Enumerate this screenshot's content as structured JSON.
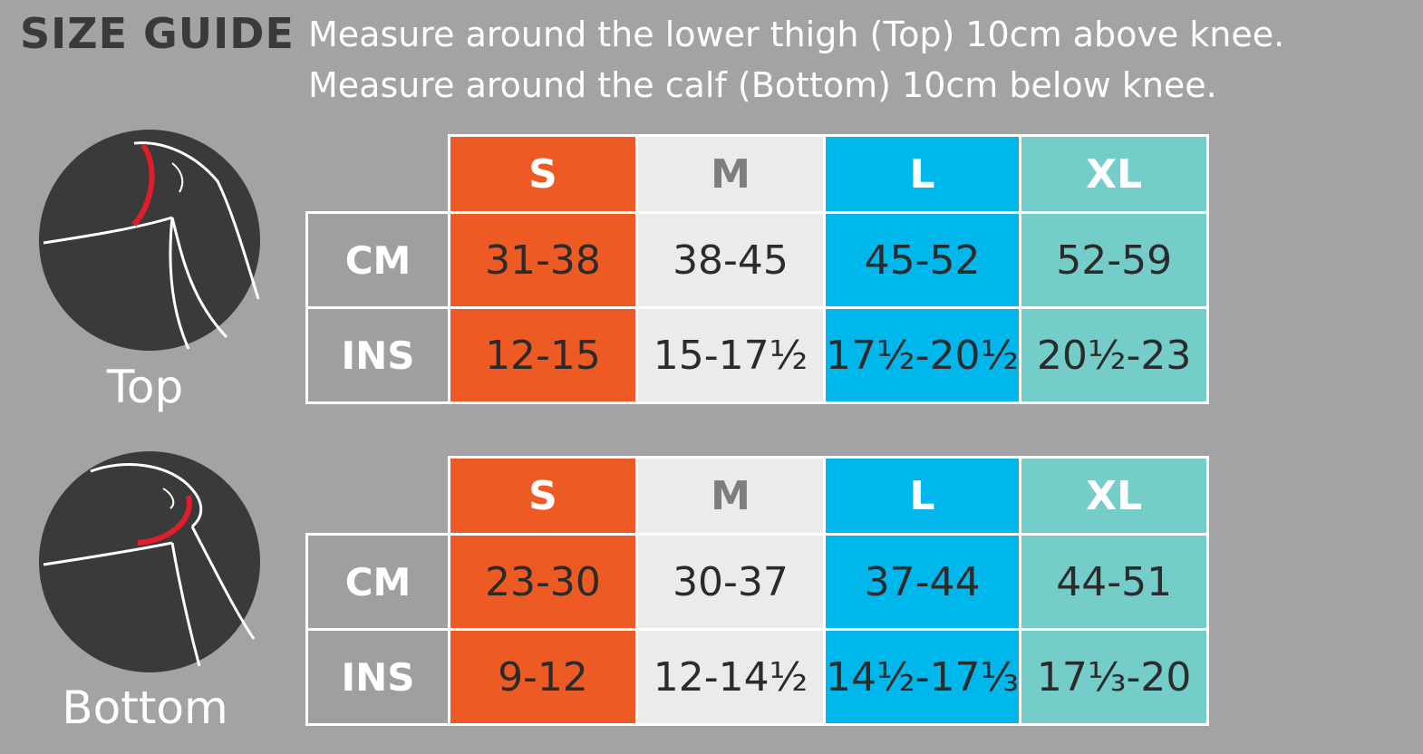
{
  "title": "SIZE GUIDE",
  "instructions": [
    "Measure around the lower thigh (Top) 10cm above knee.",
    "Measure around the calf (Bottom) 10cm below knee."
  ],
  "colors": {
    "background": "#a3a3a5",
    "S": "#ee5a24",
    "M": "#ebebeb",
    "L": "#00b7ec",
    "XL": "#75cdca",
    "measure_line": "#e01e2a"
  },
  "top": {
    "label": "Top",
    "sizes": [
      "S",
      "M",
      "L",
      "XL"
    ],
    "rows": [
      {
        "unit": "CM",
        "values": [
          "31-38",
          "38-45",
          "45-52",
          "52-59"
        ]
      },
      {
        "unit": "INS",
        "values": [
          "12-15",
          "15-17½",
          "17½-20½",
          "20½-23"
        ]
      }
    ]
  },
  "bottom": {
    "label": "Bottom",
    "sizes": [
      "S",
      "M",
      "L",
      "XL"
    ],
    "rows": [
      {
        "unit": "CM",
        "values": [
          "23-30",
          "30-37",
          "37-44",
          "44-51"
        ]
      },
      {
        "unit": "INS",
        "values": [
          "9-12",
          "12-14½",
          "14½-17⅓",
          "17⅓-20"
        ]
      }
    ]
  }
}
